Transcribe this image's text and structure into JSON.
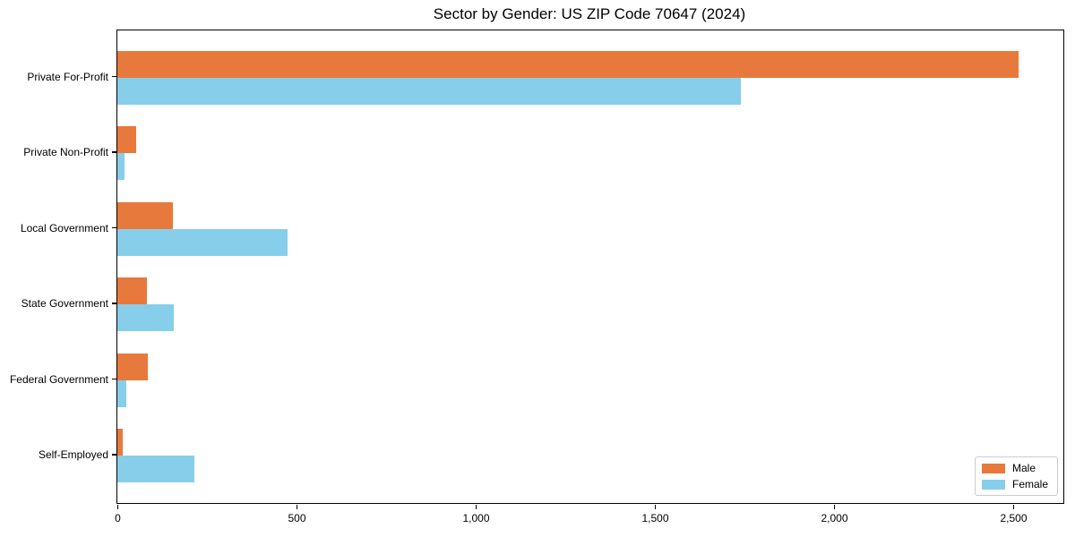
{
  "title": "Sector by Gender: US ZIP Code 70647 (2024)",
  "chart_data": {
    "type": "bar",
    "orientation": "horizontal",
    "title": "Sector by Gender: US ZIP Code 70647 (2024)",
    "xlabel": "",
    "ylabel": "",
    "categories": [
      "Private For-Profit",
      "Private Non-Profit",
      "Local Government",
      "State Government",
      "Federal Government",
      "Self-Employed"
    ],
    "series": [
      {
        "name": "Male",
        "color": "#e8793d",
        "values": [
          2515,
          52,
          155,
          82,
          85,
          16
        ]
      },
      {
        "name": "Female",
        "color": "#87ceeb",
        "values": [
          1740,
          21,
          476,
          157,
          26,
          215
        ]
      }
    ],
    "xlim": [
      0,
      2640
    ],
    "xticks": [
      0,
      500,
      1000,
      1500,
      2000,
      2500
    ],
    "xtick_labels": [
      "0",
      "500",
      "1,000",
      "1,500",
      "2,000",
      "2,500"
    ],
    "grid": false,
    "legend_position": "lower right"
  }
}
